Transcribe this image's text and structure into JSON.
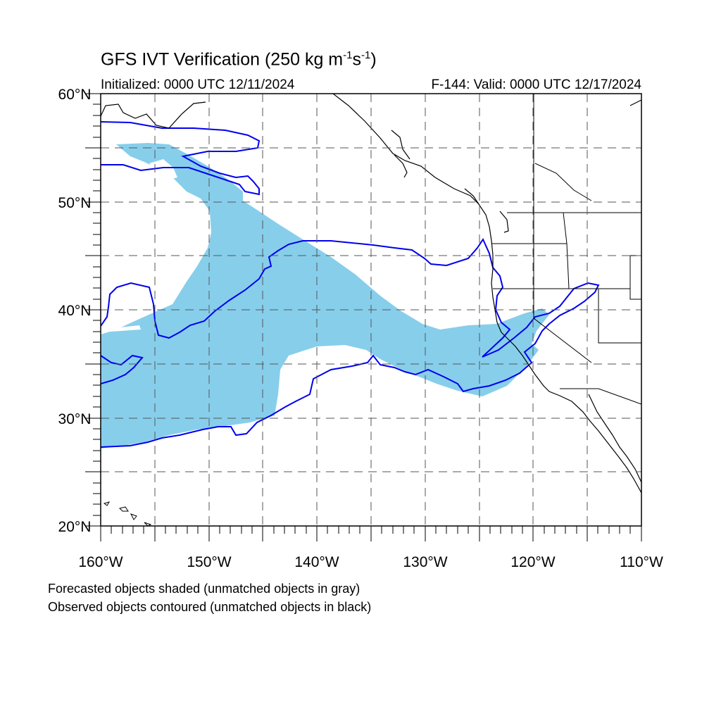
{
  "title": {
    "main": "GFS IVT Verification (250 kg m",
    "exp1": "-1",
    "mid": "s",
    "exp2": "-1",
    "end": ")"
  },
  "initialized": "Initialized: 0000 UTC 12/11/2024",
  "valid": "F-144: Valid: 0000 UTC 12/17/2024",
  "lat_labels": [
    "60°N",
    "50°N",
    "40°N",
    "30°N",
    "20°N"
  ],
  "lon_labels": [
    "160°W",
    "150°W",
    "140°W",
    "130°W",
    "120°W",
    "110°W"
  ],
  "notes": {
    "forecast": "Forecasted objects shaded (unmatched objects in gray)",
    "observed": "Observed objects contoured (unmatched objects in black)"
  },
  "colors": {
    "forecast_fill": "#87CEEB",
    "observed_contour": "#0000EE",
    "coastline": "#000000",
    "grid": "#555555"
  }
}
